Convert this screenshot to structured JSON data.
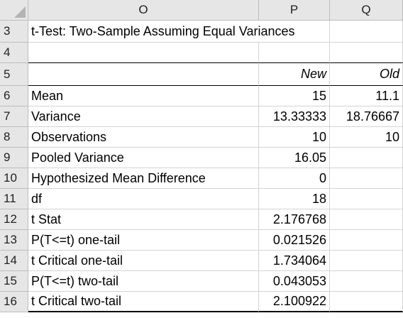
{
  "columns": [
    "O",
    "P",
    "Q"
  ],
  "title_row": {
    "row": "3",
    "text": "t-Test: Two-Sample Assuming Equal Variances"
  },
  "blank_row": {
    "row": "4"
  },
  "header_row": {
    "row": "5",
    "p": "New",
    "q": "Old"
  },
  "rows": [
    {
      "row": "6",
      "label": "Mean",
      "p": "15",
      "q": "11.1"
    },
    {
      "row": "7",
      "label": "Variance",
      "p": "13.33333",
      "q": "18.76667"
    },
    {
      "row": "8",
      "label": "Observations",
      "p": "10",
      "q": "10"
    },
    {
      "row": "9",
      "label": "Pooled Variance",
      "p": "16.05",
      "q": ""
    },
    {
      "row": "10",
      "label": "Hypothesized Mean Difference",
      "p": "0",
      "q": ""
    },
    {
      "row": "11",
      "label": "df",
      "p": "18",
      "q": ""
    },
    {
      "row": "12",
      "label": "t Stat",
      "p": "2.176768",
      "q": ""
    },
    {
      "row": "13",
      "label": "P(T<=t) one-tail",
      "p": "0.021526",
      "q": ""
    },
    {
      "row": "14",
      "label": "t Critical one-tail",
      "p": "1.734064",
      "q": ""
    },
    {
      "row": "15",
      "label": "P(T<=t) two-tail",
      "p": "0.043053",
      "q": ""
    },
    {
      "row": "16",
      "label": "t Critical two-tail",
      "p": "2.100922",
      "q": ""
    }
  ]
}
